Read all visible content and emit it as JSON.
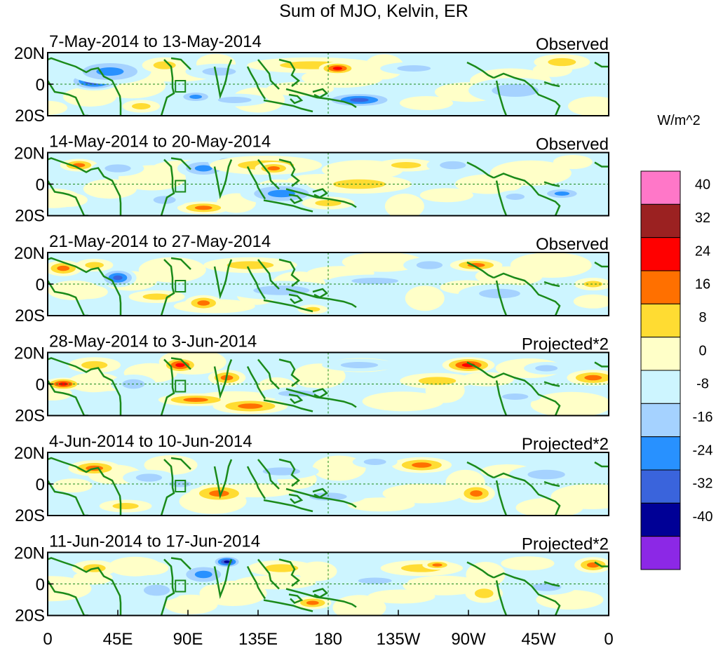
{
  "figure": {
    "title": "Sum of MJO, Kelvin, ER",
    "colorbar": {
      "units": "W/m^2",
      "tick_labels": [
        "40",
        "32",
        "24",
        "16",
        "8",
        "0",
        "-8",
        "-16",
        "-24",
        "-32",
        "-40"
      ],
      "levels": [
        40,
        32,
        24,
        16,
        8,
        0,
        -8,
        -16,
        -24,
        -32,
        -40
      ],
      "colors": [
        "#ff77c8",
        "#9b2121",
        "#ff0000",
        "#ff7000",
        "#ffdc32",
        "#ffffc8",
        "#cdf5ff",
        "#a5d2ff",
        "#2891ff",
        "#3a64dc",
        "#000096",
        "#8c28e6"
      ]
    },
    "lat_labels": [
      "20N",
      "0",
      "20S"
    ],
    "lon_labels": [
      "0",
      "45E",
      "90E",
      "135E",
      "180",
      "135W",
      "90W",
      "45W",
      "0"
    ]
  },
  "panels": [
    {
      "date_range": "7-May-2014 to 13-May-2014",
      "tag": "Observed",
      "blobs": [
        {
          "lon": 30,
          "lat": 2,
          "value": -36,
          "rx": 14,
          "ry": 6
        },
        {
          "lon": 40,
          "lat": 8,
          "value": -20,
          "rx": 22,
          "ry": 8
        },
        {
          "lon": 75,
          "lat": 12,
          "value": 10,
          "rx": 12,
          "ry": 5
        },
        {
          "lon": 110,
          "lat": 8,
          "value": -14,
          "rx": 18,
          "ry": 5
        },
        {
          "lon": 170,
          "lat": 12,
          "value": 14,
          "rx": 35,
          "ry": 5
        },
        {
          "lon": 186,
          "lat": 10,
          "value": 28,
          "rx": 10,
          "ry": 4
        },
        {
          "lon": 200,
          "lat": -10,
          "value": -28,
          "rx": 20,
          "ry": 5
        },
        {
          "lon": 235,
          "lat": 10,
          "value": -14,
          "rx": 18,
          "ry": 4
        },
        {
          "lon": 300,
          "lat": -4,
          "value": -14,
          "rx": 25,
          "ry": 8
        },
        {
          "lon": 120,
          "lat": -10,
          "value": -14,
          "rx": 18,
          "ry": 4
        },
        {
          "lon": 95,
          "lat": -8,
          "value": -18,
          "rx": 10,
          "ry": 4
        },
        {
          "lon": 330,
          "lat": 14,
          "value": 10,
          "rx": 15,
          "ry": 5
        },
        {
          "lon": 60,
          "lat": -14,
          "value": 10,
          "rx": 10,
          "ry": 4
        }
      ]
    },
    {
      "date_range": "14-May-2014 to 20-May-2014",
      "tag": "Observed",
      "blobs": [
        {
          "lon": 160,
          "lat": -8,
          "value": -40,
          "rx": 10,
          "ry": 4
        },
        {
          "lon": 150,
          "lat": -6,
          "value": -22,
          "rx": 22,
          "ry": 7
        },
        {
          "lon": 100,
          "lat": 10,
          "value": -24,
          "rx": 14,
          "ry": 6
        },
        {
          "lon": 115,
          "lat": 14,
          "value": -16,
          "rx": 10,
          "ry": 5
        },
        {
          "lon": 20,
          "lat": 12,
          "value": 18,
          "rx": 10,
          "ry": 4
        },
        {
          "lon": 45,
          "lat": 10,
          "value": -12,
          "rx": 14,
          "ry": 5
        },
        {
          "lon": 140,
          "lat": 12,
          "value": 12,
          "rx": 30,
          "ry": 6
        },
        {
          "lon": 145,
          "lat": 10,
          "value": 20,
          "rx": 10,
          "ry": 4
        },
        {
          "lon": 200,
          "lat": 0,
          "value": 16,
          "rx": 28,
          "ry": 6
        },
        {
          "lon": 230,
          "lat": 12,
          "value": 14,
          "rx": 16,
          "ry": 4
        },
        {
          "lon": 260,
          "lat": 12,
          "value": -16,
          "rx": 14,
          "ry": 5
        },
        {
          "lon": 300,
          "lat": -8,
          "value": -16,
          "rx": 10,
          "ry": 4
        },
        {
          "lon": 330,
          "lat": -6,
          "value": -20,
          "rx": 12,
          "ry": 4
        },
        {
          "lon": 100,
          "lat": -15,
          "value": 18,
          "rx": 14,
          "ry": 4
        },
        {
          "lon": 75,
          "lat": -10,
          "value": -10,
          "rx": 12,
          "ry": 5
        },
        {
          "lon": 180,
          "lat": -12,
          "value": 10,
          "rx": 14,
          "ry": 4
        }
      ]
    },
    {
      "date_range": "21-May-2014 to 27-May-2014",
      "tag": "Observed",
      "blobs": [
        {
          "lon": 45,
          "lat": 4,
          "value": -26,
          "rx": 10,
          "ry": 6
        },
        {
          "lon": 10,
          "lat": 10,
          "value": 18,
          "rx": 10,
          "ry": 5
        },
        {
          "lon": 30,
          "lat": 12,
          "value": 12,
          "rx": 10,
          "ry": 4
        },
        {
          "lon": 100,
          "lat": -12,
          "value": 18,
          "rx": 10,
          "ry": 5
        },
        {
          "lon": 150,
          "lat": -4,
          "value": -12,
          "rx": 30,
          "ry": 6
        },
        {
          "lon": 170,
          "lat": -16,
          "value": 16,
          "rx": 8,
          "ry": 3
        },
        {
          "lon": 245,
          "lat": 12,
          "value": -12,
          "rx": 14,
          "ry": 5
        },
        {
          "lon": 275,
          "lat": 12,
          "value": 18,
          "rx": 14,
          "ry": 4
        },
        {
          "lon": 290,
          "lat": -6,
          "value": -12,
          "rx": 22,
          "ry": 6
        },
        {
          "lon": 130,
          "lat": 12,
          "value": 10,
          "rx": 25,
          "ry": 5
        },
        {
          "lon": 210,
          "lat": 2,
          "value": -10,
          "rx": 25,
          "ry": 4
        },
        {
          "lon": 350,
          "lat": 0,
          "value": 14,
          "rx": 10,
          "ry": 4
        },
        {
          "lon": 70,
          "lat": -8,
          "value": 10,
          "rx": 15,
          "ry": 4
        }
      ]
    },
    {
      "date_range": "28-May-2014 to 3-Jun-2014",
      "tag": "Projected*2",
      "blobs": [
        {
          "lon": 85,
          "lat": 12,
          "value": 28,
          "rx": 10,
          "ry": 5
        },
        {
          "lon": 115,
          "lat": 4,
          "value": 22,
          "rx": 10,
          "ry": 5
        },
        {
          "lon": 95,
          "lat": -10,
          "value": 24,
          "rx": 20,
          "ry": 4
        },
        {
          "lon": 130,
          "lat": -14,
          "value": 18,
          "rx": 20,
          "ry": 5
        },
        {
          "lon": 10,
          "lat": 0,
          "value": 26,
          "rx": 10,
          "ry": 4
        },
        {
          "lon": 30,
          "lat": 12,
          "value": 14,
          "rx": 14,
          "ry": 5
        },
        {
          "lon": 55,
          "lat": 0,
          "value": -16,
          "rx": 12,
          "ry": 6
        },
        {
          "lon": 270,
          "lat": 12,
          "value": 30,
          "rx": 14,
          "ry": 5
        },
        {
          "lon": 250,
          "lat": 2,
          "value": 12,
          "rx": 20,
          "ry": 5
        },
        {
          "lon": 200,
          "lat": 12,
          "value": -16,
          "rx": 20,
          "ry": 4
        },
        {
          "lon": 160,
          "lat": -6,
          "value": -12,
          "rx": 20,
          "ry": 4
        },
        {
          "lon": 300,
          "lat": -8,
          "value": -14,
          "rx": 14,
          "ry": 4
        },
        {
          "lon": 350,
          "lat": 4,
          "value": 20,
          "rx": 14,
          "ry": 5
        },
        {
          "lon": 320,
          "lat": 10,
          "value": -12,
          "rx": 12,
          "ry": 4
        }
      ]
    },
    {
      "date_range": "4-Jun-2014 to 10-Jun-2014",
      "tag": "Projected*2",
      "blobs": [
        {
          "lon": 30,
          "lat": 10,
          "value": 18,
          "rx": 14,
          "ry": 5
        },
        {
          "lon": 65,
          "lat": 4,
          "value": -14,
          "rx": 14,
          "ry": 5
        },
        {
          "lon": 110,
          "lat": -6,
          "value": 18,
          "rx": 16,
          "ry": 6
        },
        {
          "lon": 85,
          "lat": 0,
          "value": -16,
          "rx": 12,
          "ry": 4
        },
        {
          "lon": 150,
          "lat": 8,
          "value": -12,
          "rx": 20,
          "ry": 5
        },
        {
          "lon": 180,
          "lat": -8,
          "value": -10,
          "rx": 20,
          "ry": 5
        },
        {
          "lon": 240,
          "lat": 12,
          "value": 18,
          "rx": 16,
          "ry": 5
        },
        {
          "lon": 275,
          "lat": -6,
          "value": 18,
          "rx": 10,
          "ry": 6
        },
        {
          "lon": 210,
          "lat": 14,
          "value": -14,
          "rx": 12,
          "ry": 4
        },
        {
          "lon": 320,
          "lat": 6,
          "value": -12,
          "rx": 20,
          "ry": 6
        },
        {
          "lon": 50,
          "lat": -14,
          "value": 10,
          "rx": 14,
          "ry": 4
        }
      ]
    },
    {
      "date_range": "11-Jun-2014 to 17-Jun-2014",
      "tag": "Projected*2",
      "blobs": [
        {
          "lon": 115,
          "lat": 14,
          "value": -34,
          "rx": 8,
          "ry": 4
        },
        {
          "lon": 100,
          "lat": 6,
          "value": -20,
          "rx": 14,
          "ry": 7
        },
        {
          "lon": 70,
          "lat": -4,
          "value": -16,
          "rx": 14,
          "ry": 7
        },
        {
          "lon": 30,
          "lat": 10,
          "value": 12,
          "rx": 12,
          "ry": 5
        },
        {
          "lon": 150,
          "lat": 10,
          "value": 12,
          "rx": 18,
          "ry": 5
        },
        {
          "lon": 170,
          "lat": -12,
          "value": 18,
          "rx": 10,
          "ry": 4
        },
        {
          "lon": 240,
          "lat": 10,
          "value": 16,
          "rx": 22,
          "ry": 5
        },
        {
          "lon": 250,
          "lat": 12,
          "value": 20,
          "rx": 8,
          "ry": 3
        },
        {
          "lon": 280,
          "lat": -6,
          "value": 14,
          "rx": 10,
          "ry": 6
        },
        {
          "lon": 350,
          "lat": 12,
          "value": 18,
          "rx": 10,
          "ry": 5
        },
        {
          "lon": 210,
          "lat": 2,
          "value": -12,
          "rx": 18,
          "ry": 4
        },
        {
          "lon": 320,
          "lat": -2,
          "value": -10,
          "rx": 16,
          "ry": 5
        }
      ]
    }
  ]
}
